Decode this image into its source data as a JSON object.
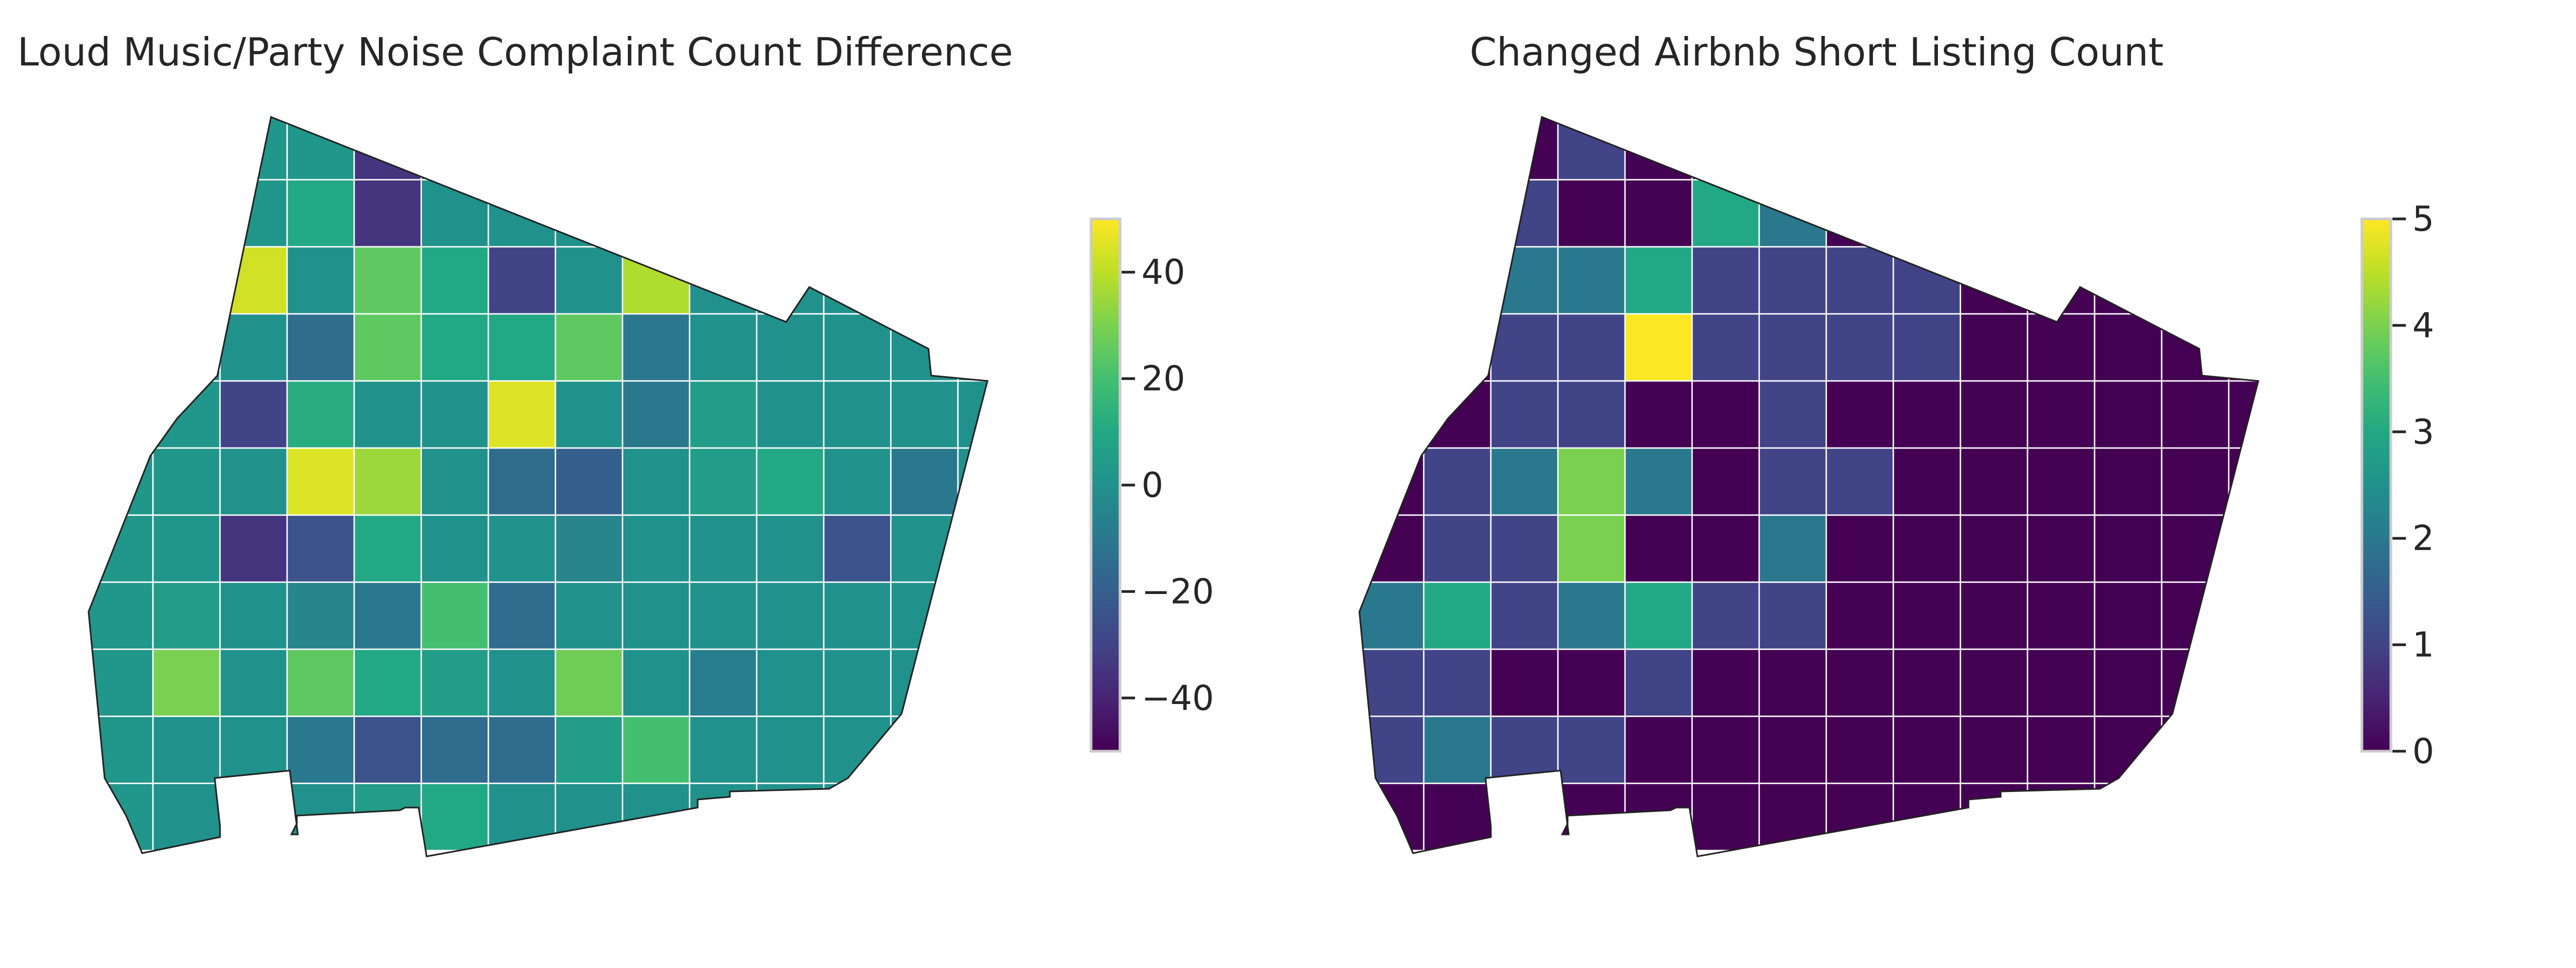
{
  "chart_data": [
    {
      "type": "heatmap",
      "title": "Loud Music/Party Noise Complaint Count Difference",
      "colormap": "viridis",
      "vmin": -50,
      "vmax": 50,
      "colorbar_ticks": [
        40,
        20,
        0,
        -20,
        -40
      ],
      "colorbar_tick_labels": [
        "40",
        "20",
        "0",
        "−20",
        "−40"
      ],
      "grid_values": [
        [
          2,
          2,
          2,
          2,
          -35,
          0,
          0,
          0,
          0,
          0,
          0,
          0,
          0,
          0
        ],
        [
          2,
          2,
          2,
          10,
          -35,
          0,
          0,
          0,
          0,
          0,
          0,
          0,
          0,
          0
        ],
        [
          2,
          2,
          43,
          0,
          25,
          10,
          -30,
          0,
          38,
          0,
          0,
          0,
          0,
          0
        ],
        [
          2,
          2,
          0,
          -15,
          25,
          10,
          10,
          25,
          -10,
          0,
          0,
          0,
          0,
          0
        ],
        [
          2,
          2,
          -30,
          12,
          0,
          0,
          45,
          0,
          -10,
          5,
          0,
          0,
          0,
          0
        ],
        [
          2,
          2,
          0,
          45,
          35,
          0,
          -15,
          -20,
          0,
          5,
          10,
          0,
          -10,
          0
        ],
        [
          2,
          2,
          -35,
          -25,
          10,
          0,
          0,
          -5,
          0,
          0,
          0,
          -25,
          0,
          0
        ],
        [
          2,
          5,
          0,
          -5,
          -10,
          20,
          -15,
          0,
          0,
          0,
          0,
          0,
          0,
          0
        ],
        [
          2,
          30,
          0,
          25,
          10,
          5,
          0,
          28,
          0,
          -8,
          0,
          0,
          0,
          0
        ],
        [
          2,
          0,
          0,
          -10,
          -25,
          -15,
          -15,
          5,
          20,
          0,
          0,
          0,
          0,
          0
        ],
        [
          2,
          0,
          0,
          0,
          5,
          10,
          0,
          0,
          0,
          0,
          0,
          0,
          0,
          0
        ]
      ]
    },
    {
      "type": "heatmap",
      "title": "Changed Airbnb Short Listing Count",
      "colormap": "viridis",
      "vmin": 0,
      "vmax": 5,
      "colorbar_ticks": [
        5,
        4,
        3,
        2,
        1,
        0
      ],
      "colorbar_tick_labels": [
        "5",
        "4",
        "3",
        "2",
        "1",
        "0"
      ],
      "grid_values": [
        [
          0,
          0,
          0,
          1,
          0,
          0,
          0,
          0,
          0,
          0,
          0,
          0,
          0,
          0
        ],
        [
          0,
          0,
          1,
          0,
          0,
          3,
          2,
          0,
          0,
          0,
          0,
          0,
          0,
          0
        ],
        [
          0,
          0,
          2,
          2,
          3,
          1,
          1,
          1,
          1,
          0,
          0,
          0,
          0,
          0
        ],
        [
          0,
          0,
          1,
          1,
          5,
          1,
          1,
          1,
          1,
          0,
          0,
          0,
          0,
          0
        ],
        [
          0,
          0,
          1,
          1,
          0,
          0,
          1,
          0,
          0,
          0,
          0,
          0,
          0,
          0
        ],
        [
          0,
          1,
          2,
          4,
          2,
          0,
          1,
          1,
          0,
          0,
          0,
          0,
          0,
          0
        ],
        [
          0,
          1,
          1,
          4,
          0,
          0,
          2,
          0,
          0,
          0,
          0,
          0,
          0,
          0
        ],
        [
          2,
          3,
          1,
          2,
          3,
          1,
          1,
          0,
          0,
          0,
          0,
          0,
          0,
          0
        ],
        [
          1,
          1,
          0,
          0,
          1,
          0,
          0,
          0,
          0,
          0,
          0,
          0,
          0,
          0
        ],
        [
          1,
          2,
          1,
          1,
          0,
          0,
          0,
          0,
          0,
          0,
          0,
          0,
          0,
          0
        ],
        [
          0,
          0,
          0,
          0,
          0,
          0,
          0,
          0,
          0,
          0,
          0,
          0,
          0,
          0
        ]
      ]
    }
  ]
}
